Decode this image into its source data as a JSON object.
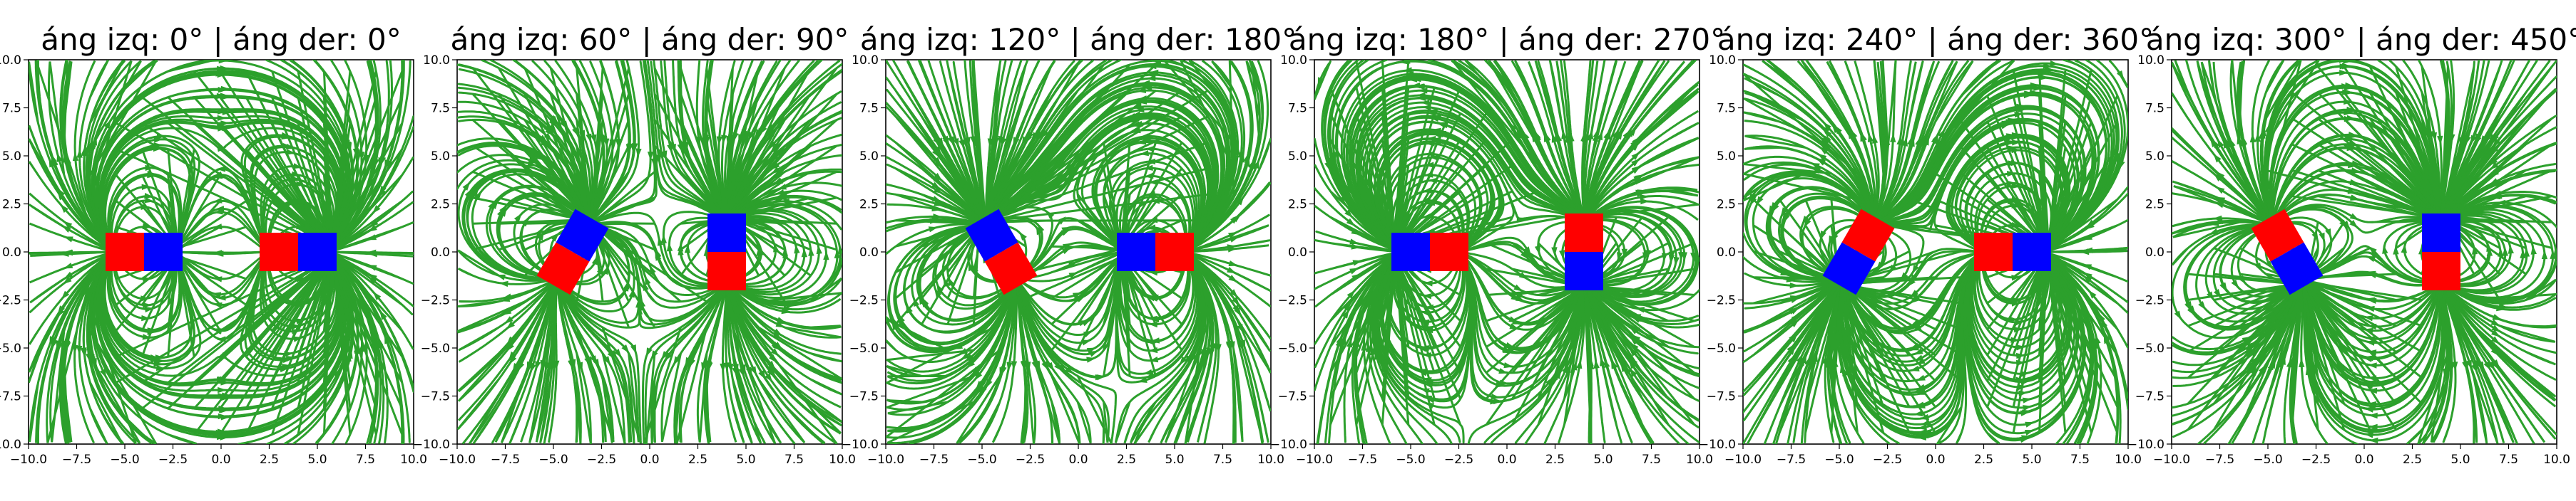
{
  "chart_data": [
    {
      "type": "streamplot",
      "title": "áng izq: 0° | áng der: 0°",
      "xlim": [
        -10,
        10
      ],
      "ylim": [
        -10,
        10
      ],
      "xticks": [
        "−10.0",
        "−7.5",
        "−5.0",
        "−2.5",
        "0.0",
        "2.5",
        "5.0",
        "7.5",
        "10.0"
      ],
      "yticks": [
        "10.0",
        "7.5",
        "5.0",
        "2.5",
        "0.0",
        "−2.5",
        "−5.0",
        "−7.5",
        "−10.0"
      ],
      "magnets": [
        {
          "name": "left",
          "center": [
            -4,
            0
          ],
          "angle_deg": 0
        },
        {
          "name": "right",
          "center": [
            4,
            0
          ],
          "angle_deg": 0
        }
      ]
    },
    {
      "type": "streamplot",
      "title": "áng izq: 60° | áng der: 90°",
      "xlim": [
        -10,
        10
      ],
      "ylim": [
        -10,
        10
      ],
      "xticks": [
        "−10.0",
        "−7.5",
        "−5.0",
        "−2.5",
        "0.0",
        "2.5",
        "5.0",
        "7.5",
        "10.0"
      ],
      "yticks": [
        "10.0",
        "7.5",
        "5.0",
        "2.5",
        "0.0",
        "−2.5",
        "−5.0",
        "−7.5",
        "−10.0"
      ],
      "magnets": [
        {
          "name": "left",
          "center": [
            -4,
            0
          ],
          "angle_deg": 60
        },
        {
          "name": "right",
          "center": [
            4,
            0
          ],
          "angle_deg": 90
        }
      ]
    },
    {
      "type": "streamplot",
      "title": "áng izq: 120° | áng der: 180°",
      "xlim": [
        -10,
        10
      ],
      "ylim": [
        -10,
        10
      ],
      "xticks": [
        "−10.0",
        "−7.5",
        "−5.0",
        "−2.5",
        "0.0",
        "2.5",
        "5.0",
        "7.5",
        "10.0"
      ],
      "yticks": [
        "10.0",
        "7.5",
        "5.0",
        "2.5",
        "0.0",
        "−2.5",
        "−5.0",
        "−7.5",
        "−10.0"
      ],
      "magnets": [
        {
          "name": "left",
          "center": [
            -4,
            0
          ],
          "angle_deg": 120
        },
        {
          "name": "right",
          "center": [
            4,
            0
          ],
          "angle_deg": 180
        }
      ]
    },
    {
      "type": "streamplot",
      "title": "áng izq: 180° | áng der: 270°",
      "xlim": [
        -10,
        10
      ],
      "ylim": [
        -10,
        10
      ],
      "xticks": [
        "−10.0",
        "−7.5",
        "−5.0",
        "−2.5",
        "0.0",
        "2.5",
        "5.0",
        "7.5",
        "10.0"
      ],
      "yticks": [
        "10.0",
        "7.5",
        "5.0",
        "2.5",
        "0.0",
        "−2.5",
        "−5.0",
        "−7.5",
        "−10.0"
      ],
      "magnets": [
        {
          "name": "left",
          "center": [
            -4,
            0
          ],
          "angle_deg": 180
        },
        {
          "name": "right",
          "center": [
            4,
            0
          ],
          "angle_deg": 270
        }
      ]
    },
    {
      "type": "streamplot",
      "title": "áng izq: 240° | áng der: 360°",
      "xlim": [
        -10,
        10
      ],
      "ylim": [
        -10,
        10
      ],
      "xticks": [
        "−10.0",
        "−7.5",
        "−5.0",
        "−2.5",
        "0.0",
        "2.5",
        "5.0",
        "7.5",
        "10.0"
      ],
      "yticks": [
        "10.0",
        "7.5",
        "5.0",
        "2.5",
        "0.0",
        "−2.5",
        "−5.0",
        "−7.5",
        "−10.0"
      ],
      "magnets": [
        {
          "name": "left",
          "center": [
            -4,
            0
          ],
          "angle_deg": 240
        },
        {
          "name": "right",
          "center": [
            4,
            0
          ],
          "angle_deg": 360
        }
      ]
    },
    {
      "type": "streamplot",
      "title": "áng izq: 300° | áng der: 450°",
      "xlim": [
        -10,
        10
      ],
      "ylim": [
        -10,
        10
      ],
      "xticks": [
        "−10.0",
        "−7.5",
        "−5.0",
        "−2.5",
        "0.0",
        "2.5",
        "5.0",
        "7.5",
        "10.0"
      ],
      "yticks": [
        "10.0",
        "7.5",
        "5.0",
        "2.5",
        "0.0",
        "−2.5",
        "−5.0",
        "−7.5",
        "−10.0"
      ],
      "magnets": [
        {
          "name": "left",
          "center": [
            -4,
            0
          ],
          "angle_deg": 300
        },
        {
          "name": "right",
          "center": [
            4,
            0
          ],
          "angle_deg": 450
        }
      ]
    }
  ],
  "colors": {
    "field_lines": "#2ca02c",
    "north_pole": "#ff0000",
    "south_pole": "#0000ff",
    "background": "#ffffff"
  }
}
